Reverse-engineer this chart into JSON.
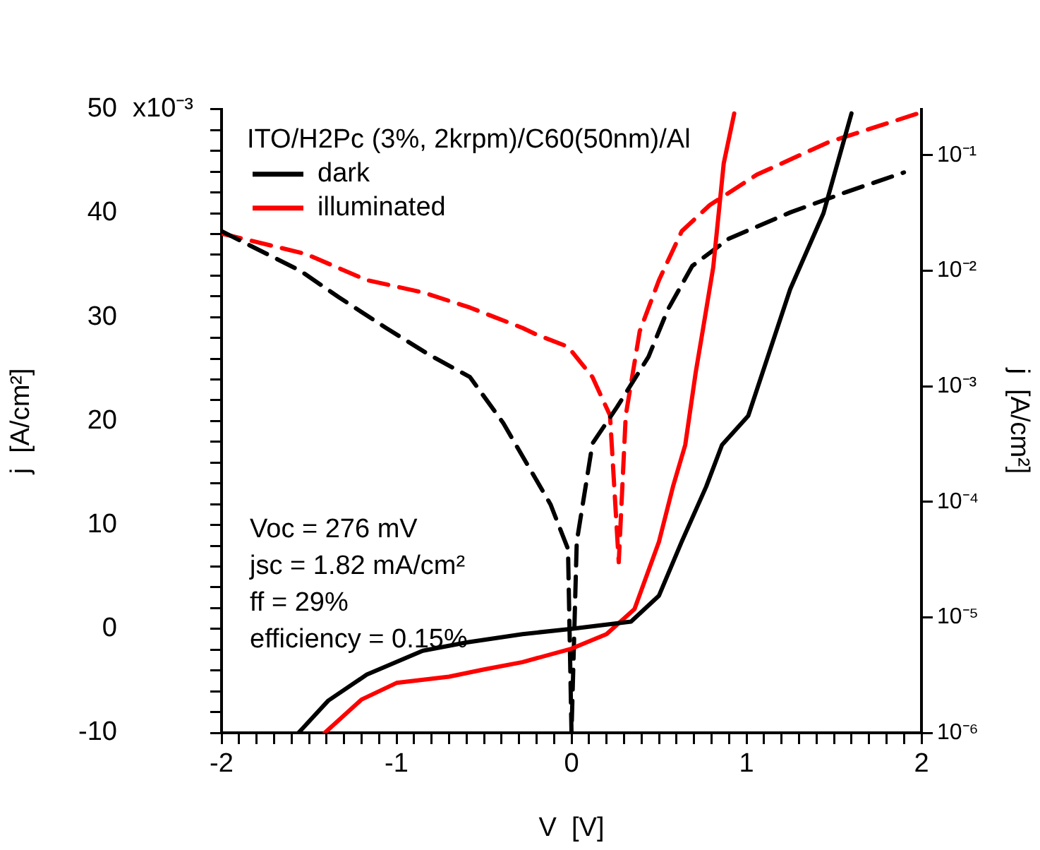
{
  "chart_data": {
    "type": "line",
    "legend_title": "ITO/H2Pc (3%, 2krpm)/C60(50nm)/Al",
    "xlabel": "V  [V]",
    "ylabel": "j  [A/cm²]",
    "y2label": "j  [A/cm²]",
    "legend": "top left",
    "marker": "none",
    "log": "y2",
    "annotations": [
      "x10⁻³",
      "Voc = 276 mV",
      "jsc = 1.82 mA/cm²",
      "ff = 29%",
      "efficiency = 0.15%"
    ],
    "xlim": [
      -2,
      2
    ],
    "xticks": [
      -2,
      {
        "value": -1.9,
        "label": null
      },
      {
        "value": -1.8,
        "label": null
      },
      {
        "value": -1.7,
        "label": null
      },
      {
        "value": -1.6,
        "label": null
      },
      {
        "value": -1.5,
        "label": null
      },
      {
        "value": -1.4,
        "label": null
      },
      {
        "value": -1.3,
        "label": null
      },
      {
        "value": -1.2,
        "label": null
      },
      {
        "value": -1.1,
        "label": null
      },
      -1,
      {
        "value": -0.9,
        "label": null
      },
      {
        "value": -0.8,
        "label": null
      },
      {
        "value": -0.7,
        "label": null
      },
      {
        "value": -0.6,
        "label": null
      },
      {
        "value": -0.5,
        "label": null
      },
      {
        "value": -0.4,
        "label": null
      },
      {
        "value": -0.3,
        "label": null
      },
      {
        "value": -0.2,
        "label": null
      },
      {
        "value": -0.1,
        "label": null
      },
      0,
      {
        "value": 0.1,
        "label": null
      },
      {
        "value": 0.2,
        "label": null
      },
      {
        "value": 0.3,
        "label": null
      },
      {
        "value": 0.4,
        "label": null
      },
      {
        "value": 0.5,
        "label": null
      },
      {
        "value": 0.6,
        "label": null
      },
      {
        "value": 0.7,
        "label": null
      },
      {
        "value": 0.8,
        "label": null
      },
      {
        "value": 0.9,
        "label": null
      },
      1,
      {
        "value": 1.1,
        "label": null
      },
      {
        "value": 1.2,
        "label": null
      },
      {
        "value": 1.3,
        "label": null
      },
      {
        "value": 1.4,
        "label": null
      },
      {
        "value": 1.5,
        "label": null
      },
      {
        "value": 1.6,
        "label": null
      },
      {
        "value": 1.7,
        "label": null
      },
      {
        "value": 1.8,
        "label": null
      },
      {
        "value": 1.9,
        "label": null
      },
      2
    ],
    "ylim": [
      -10,
      50
    ],
    "yticks": [
      -10,
      {
        "value": -8,
        "label": null
      },
      {
        "value": -6,
        "label": null
      },
      {
        "value": -4,
        "label": null
      },
      {
        "value": -2,
        "label": null
      },
      0,
      {
        "value": 2,
        "label": null
      },
      {
        "value": 4,
        "label": null
      },
      {
        "value": 6,
        "label": null
      },
      {
        "value": 8,
        "label": null
      },
      10,
      {
        "value": 12,
        "label": null
      },
      {
        "value": 14,
        "label": null
      },
      {
        "value": 16,
        "label": null
      },
      {
        "value": 18,
        "label": null
      },
      20,
      {
        "value": 22,
        "label": null
      },
      {
        "value": 24,
        "label": null
      },
      {
        "value": 26,
        "label": null
      },
      {
        "value": 28,
        "label": null
      },
      30,
      {
        "value": 32,
        "label": null
      },
      {
        "value": 34,
        "label": null
      },
      {
        "value": 36,
        "label": null
      },
      {
        "value": 38,
        "label": null
      },
      40,
      {
        "value": 42,
        "label": null
      },
      {
        "value": 44,
        "label": null
      },
      {
        "value": 46,
        "label": null
      },
      {
        "value": 48,
        "label": null
      },
      50
    ],
    "y2lim": [
      1e-06,
      0.25
    ],
    "y2ticks": [
      {
        "value": 1e-06,
        "label": "10⁻⁶"
      },
      {
        "value": 1e-05,
        "label": "10⁻⁵"
      },
      {
        "value": 0.0001,
        "label": "10⁻⁴"
      },
      {
        "value": 0.001,
        "label": "10⁻³"
      },
      {
        "value": 0.01,
        "label": "10⁻²"
      },
      {
        "value": 0.1,
        "label": "10⁻¹"
      }
    ],
    "series": [
      {
        "name": "dark",
        "color": "#000000",
        "line_style": "solid",
        "x": [
          -1.56,
          -1.39,
          -1.17,
          -0.85,
          -0.6,
          -0.28,
          0,
          0.34,
          0.5,
          0.63,
          0.77,
          0.86,
          1.01,
          1.25,
          1.44,
          1.6
        ],
        "values": [
          -10,
          -6.9,
          -4.4,
          -2.1,
          -1.3,
          -0.5,
          0,
          0.7,
          3.2,
          8.4,
          13.7,
          17.7,
          20.5,
          32.7,
          40,
          49.6
        ]
      },
      {
        "name": "illuminated",
        "color": "#ff0000",
        "line_style": "solid",
        "x": [
          -1.41,
          -1.2,
          -1,
          -0.7,
          -0.5,
          -0.28,
          0,
          0.2,
          0.36,
          0.5,
          0.58,
          0.65,
          0.71,
          0.75,
          0.81,
          0.87,
          0.93
        ],
        "values": [
          -10,
          -6.8,
          -5.2,
          -4.6,
          -3.9,
          -3.2,
          -1.9,
          -0.5,
          1.9,
          8.4,
          13.7,
          17.7,
          24.7,
          28.7,
          34.8,
          44.8,
          49.6
        ]
      },
      {
        "color": "#000000",
        "line_style": "dashed",
        "axis": "y2",
        "x": [
          -2,
          -1.55,
          -1.33,
          -1.06,
          -0.82,
          -0.58,
          -0.39,
          -0.12,
          -0.02,
          0,
          0.03,
          0.12,
          0.26,
          0.44,
          0.55,
          0.69,
          0.9,
          1.25,
          1.57,
          1.9
        ],
        "values": [
          0.022,
          0.01,
          0.0059,
          0.0032,
          0.0019,
          0.0012,
          0.00048,
          9.5e-05,
          3.9e-05,
          1e-06,
          4.5e-05,
          0.00032,
          0.00066,
          0.0018,
          0.0046,
          0.011,
          0.019,
          0.032,
          0.048,
          0.071
        ]
      },
      {
        "color": "#ff0000",
        "line_style": "dashed",
        "axis": "y2",
        "x": [
          -2,
          -1.52,
          -1.17,
          -0.85,
          -0.58,
          -0.28,
          -0.2,
          -0.02,
          0.12,
          0.22,
          0.27,
          0.31,
          0.39,
          0.5,
          0.63,
          0.79,
          1.06,
          1.47,
          1.76,
          1.98
        ],
        "values": [
          0.021,
          0.014,
          0.0083,
          0.0065,
          0.0048,
          0.0032,
          0.0028,
          0.0022,
          0.0012,
          0.00056,
          3e-05,
          0.00056,
          0.003,
          0.0083,
          0.022,
          0.037,
          0.068,
          0.13,
          0.18,
          0.23
        ]
      }
    ]
  }
}
